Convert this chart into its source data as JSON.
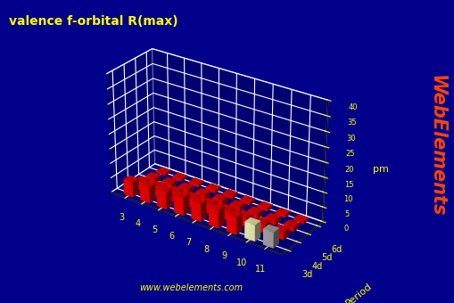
{
  "title": "valence f-orbital R(max)",
  "ylabel": "Period",
  "zlabel": "pm",
  "groups": [
    3,
    4,
    5,
    6,
    7,
    8,
    9,
    10,
    11
  ],
  "periods": [
    "3d",
    "4d",
    "5d",
    "6d"
  ],
  "watermark": "www.webelements.com",
  "brand": "WebElements",
  "background_color": "#00008B",
  "bar_data": {
    "3d": [
      5.2,
      5.5,
      5.8,
      6.0,
      6.1,
      6.0,
      5.9,
      5.5,
      5.3
    ],
    "4d": [
      2.5,
      2.8,
      3.0,
      3.1,
      3.2,
      3.1,
      3.0,
      2.9,
      2.7
    ],
    "5d": [
      1.4,
      1.6,
      1.8,
      1.9,
      2.0,
      1.9,
      1.8,
      1.7,
      1.5
    ],
    "6d": [
      0.7,
      0.8,
      0.9,
      1.0,
      1.0,
      0.9,
      0.9,
      0.8,
      0.7
    ]
  },
  "bar_colors": {
    "3d": [
      "#FF0000",
      "#FF0000",
      "#FF0000",
      "#FF0000",
      "#FF0000",
      "#FF0000",
      "#FF0000",
      "#FFFFC0",
      "#B0B0B0"
    ],
    "4d": [
      "#FF0000",
      "#FF0000",
      "#FF0000",
      "#FF0000",
      "#FF0000",
      "#FF0000",
      "#FF0000",
      "#FF0000",
      "#FF0000"
    ],
    "5d": [
      "#FF0000",
      "#FF0000",
      "#FF0000",
      "#FF0000",
      "#FF0000",
      "#FF0000",
      "#FF0000",
      "#FF0000",
      "#FF0000"
    ],
    "6d": [
      "#FF0000",
      "#FF0000",
      "#FF0000",
      "#FF0000",
      "#FF0000",
      "#FF0000",
      "#FF0000",
      "#FF0000",
      "#FF0000"
    ]
  },
  "zlim": [
    0,
    40
  ],
  "zticks": [
    0,
    5,
    10,
    15,
    20,
    25,
    30,
    35,
    40
  ],
  "title_color": "#FFFF00",
  "axis_label_color": "#FFFF00",
  "tick_color": "#FFFF00",
  "grid_color": "#FFFFFF",
  "watermark_color": "#FFFF00",
  "brand_color": "#FF4400",
  "pane_color": [
    0.0,
    0.0,
    0.35,
    0.5
  ],
  "floor_color": [
    0.35,
    0.35,
    0.35,
    1.0
  ]
}
